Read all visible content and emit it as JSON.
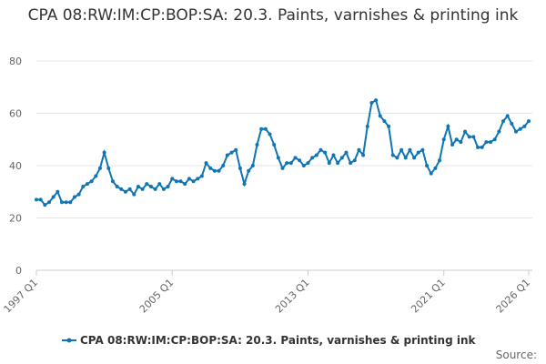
{
  "chart_data": {
    "type": "line",
    "title": "CPA 08:RW:IM:CP:BOP:SA: 20.3. Paints, varnishes & printing ink",
    "source_label": "Source:",
    "categories": [
      "1997 Q1",
      null,
      null,
      null,
      null,
      null,
      null,
      null,
      null,
      null,
      null,
      null,
      null,
      null,
      null,
      null,
      null,
      null,
      null,
      null,
      null,
      null,
      null,
      null,
      null,
      null,
      null,
      null,
      null,
      null,
      null,
      null,
      "2005 Q1",
      null,
      null,
      null,
      null,
      null,
      null,
      null,
      null,
      null,
      null,
      null,
      null,
      null,
      null,
      null,
      null,
      null,
      null,
      null,
      null,
      null,
      null,
      null,
      null,
      null,
      null,
      null,
      null,
      null,
      null,
      null,
      "2013 Q1",
      null,
      null,
      null,
      null,
      null,
      null,
      null,
      null,
      null,
      null,
      null,
      null,
      null,
      null,
      null,
      null,
      null,
      null,
      null,
      null,
      null,
      null,
      null,
      null,
      null,
      null,
      null,
      null,
      null,
      null,
      null,
      "2021 Q1",
      null,
      null,
      null,
      null,
      null,
      null,
      null,
      null,
      null,
      null,
      null,
      null,
      null,
      null,
      null,
      null,
      null,
      null,
      null,
      "2026 Q1"
    ],
    "series": [
      {
        "name": "CPA 08:RW:IM:CP:BOP:SA: 20.3. Paints, varnishes & printing ink",
        "color": "#0f75b4",
        "values": [
          27,
          27,
          25,
          26,
          28,
          30,
          26,
          26,
          26,
          28,
          29,
          32,
          33,
          34,
          36,
          39,
          45,
          39,
          34,
          32,
          31,
          30,
          31,
          29,
          32,
          31,
          33,
          32,
          31,
          33,
          31,
          32,
          35,
          34,
          34,
          33,
          35,
          34,
          35,
          36,
          41,
          39,
          38,
          38,
          40,
          44,
          45,
          46,
          39,
          33,
          38,
          40,
          48,
          54,
          54,
          52,
          48,
          43,
          39,
          41,
          41,
          43,
          42,
          40,
          41,
          43,
          44,
          46,
          45,
          41,
          44,
          41,
          43,
          45,
          41,
          42,
          46,
          44,
          55,
          64,
          65,
          59,
          57,
          55,
          44,
          43,
          46,
          43,
          46,
          43,
          45,
          46,
          40,
          37,
          39,
          42,
          50,
          55,
          48,
          50,
          49,
          53,
          51,
          51,
          47,
          47,
          49,
          49,
          50,
          53,
          57,
          59,
          56,
          53,
          54,
          55,
          57
        ]
      }
    ],
    "ylim": [
      0,
      80
    ],
    "yticks": [
      0,
      20,
      40,
      60,
      80
    ],
    "grid": true
  }
}
